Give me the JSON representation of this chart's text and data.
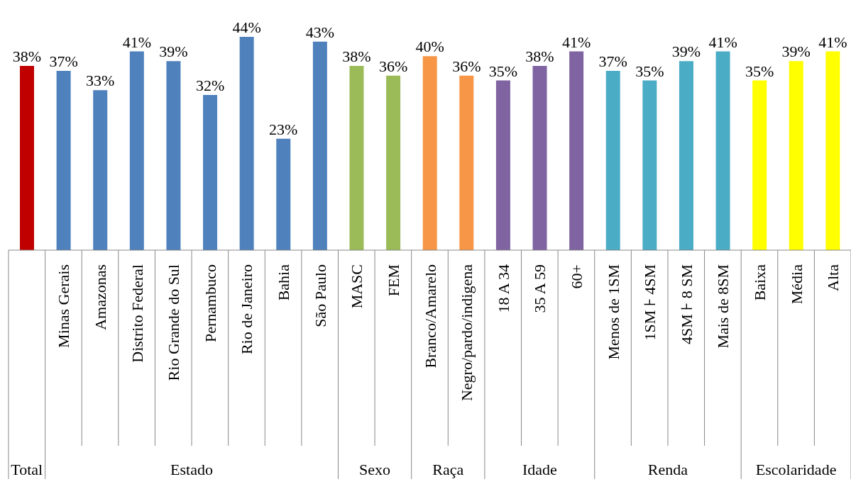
{
  "chart_data": {
    "type": "bar",
    "categories": [
      null,
      "Minas Gerais",
      "Amazonas",
      "Distrito Federal",
      "Rio Grande do Sul",
      "Pernambuco",
      "Rio de Janeiro",
      "Bahia",
      "São Paulo",
      "MASC",
      "FEM",
      "Branco/Amarelo",
      "Negro/pardo/indigena",
      "18 A 34",
      "35 A 59",
      "60+",
      "Menos de 1SM",
      "1SM ⊦ 4SM",
      "4SM ⊦ 8 SM",
      "Mais de 8SM",
      "Baixa",
      "Média",
      "Alta"
    ],
    "values": [
      38,
      37,
      33,
      41,
      39,
      32,
      44,
      23,
      43,
      38,
      36,
      40,
      36,
      35,
      38,
      41,
      37,
      35,
      39,
      41,
      35,
      39,
      41
    ],
    "value_labels": [
      "38%",
      "37%",
      "33%",
      "41%",
      "39%",
      "32%",
      "44%",
      "23%",
      "43%",
      "38%",
      "36%",
      "40%",
      "36%",
      "35%",
      "38%",
      "41%",
      "37%",
      "35%",
      "39%",
      "41%",
      "35%",
      "39%",
      "41%"
    ],
    "colors": [
      "#c00000",
      "#4f81bd",
      "#4f81bd",
      "#4f81bd",
      "#4f81bd",
      "#4f81bd",
      "#4f81bd",
      "#4f81bd",
      "#4f81bd",
      "#9bbb59",
      "#9bbb59",
      "#f79646",
      "#f79646",
      "#8064a2",
      "#8064a2",
      "#8064a2",
      "#4bacc6",
      "#4bacc6",
      "#4bacc6",
      "#4bacc6",
      "#ffff00",
      "#ffff00",
      "#ffff00"
    ],
    "annotations": [
      "Total",
      "Estado",
      "Sexo",
      "Raça",
      "Idade",
      "Renda",
      "Escolaridade"
    ],
    "legend": false,
    "grid": false
  }
}
